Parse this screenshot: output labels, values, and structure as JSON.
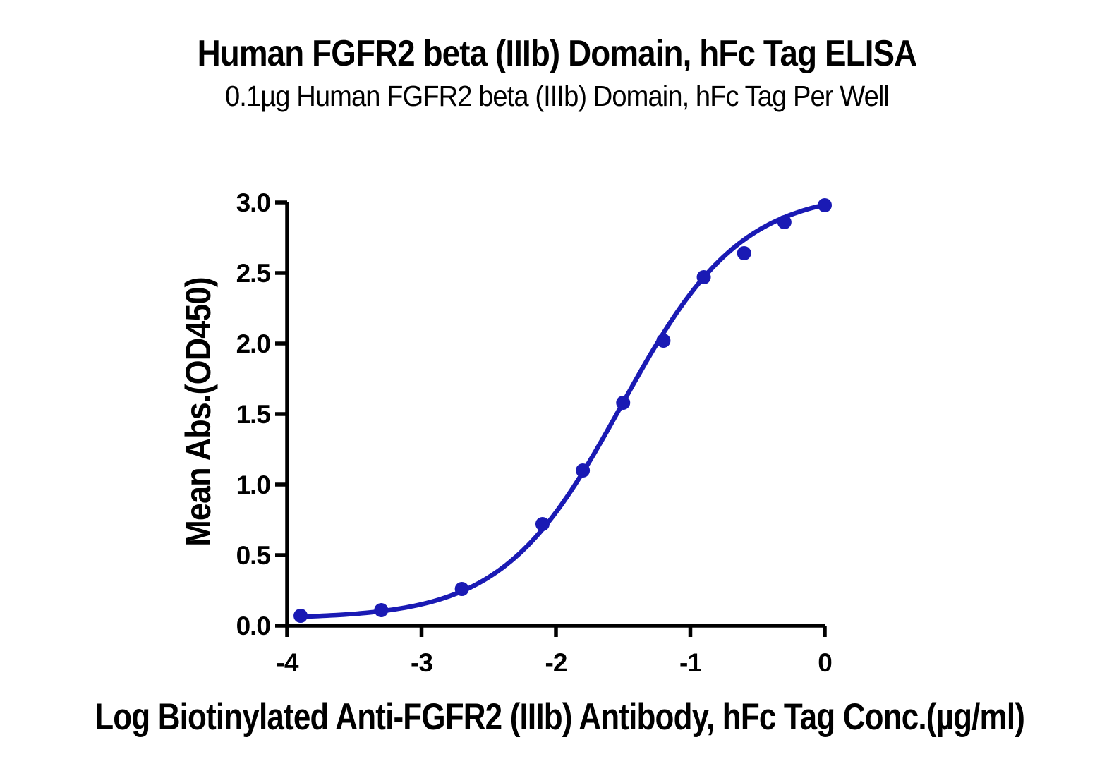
{
  "chart_data": {
    "type": "scatter",
    "title": "Human FGFR2 beta (IIIb) Domain, hFc Tag ELISA",
    "subtitle": "0.1µg Human FGFR2 beta (IIIb) Domain, hFc Tag Per Well",
    "xlabel": "Log Biotinylated Anti-FGFR2 (IIIb) Antibody, hFc Tag Conc.(µg/ml)",
    "ylabel": "Mean Abs.(OD450)",
    "x": [
      -3.9,
      -3.3,
      -2.7,
      -2.1,
      -1.8,
      -1.5,
      -1.2,
      -0.9,
      -0.6,
      -0.3,
      0
    ],
    "y": [
      0.07,
      0.11,
      0.26,
      0.72,
      1.1,
      1.58,
      2.02,
      2.47,
      2.64,
      2.86,
      2.98
    ],
    "x_ticks": [
      -4,
      -3,
      -2,
      -1,
      0
    ],
    "x_tick_labels": [
      "-4",
      "-3",
      "-2",
      "-1",
      "0"
    ],
    "y_ticks": [
      0.0,
      0.5,
      1.0,
      1.5,
      2.0,
      2.5,
      3.0
    ],
    "y_tick_labels": [
      "0.0",
      "0.5",
      "1.0",
      "1.5",
      "2.0",
      "2.5",
      "3.0"
    ],
    "xlim": [
      -4,
      0
    ],
    "ylim": [
      0,
      3
    ],
    "fit": {
      "model": "4PL sigmoid",
      "bottom": 0.05,
      "top": 3.08,
      "log_ec50": -1.51,
      "hill_slope": 0.98
    },
    "grid": false,
    "legend": false,
    "colors": {
      "series": "#1a1ab4",
      "axis": "#000000",
      "background": "#ffffff"
    }
  }
}
